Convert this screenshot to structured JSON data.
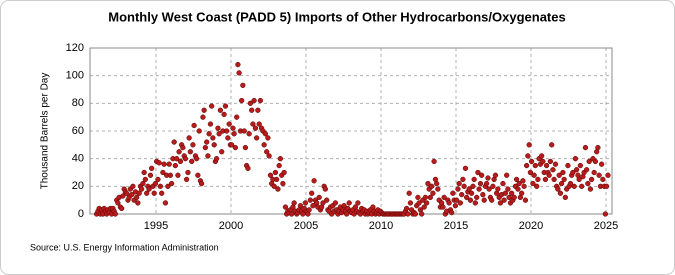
{
  "chart_data": {
    "type": "scatter",
    "title": "Monthly West Coast (PADD 5) Imports of Other Hydrocarbons/Oxygenates",
    "y_label": "Thousand Barrels per Day",
    "source": "Source: U.S. Energy Information Administration",
    "xlim": [
      1990.6,
      2025.4
    ],
    "xticks": [
      1995,
      2000,
      2005,
      2010,
      2015,
      2020,
      2025
    ],
    "ylim": [
      0,
      120
    ],
    "yticks": [
      0,
      20,
      40,
      60,
      80,
      100,
      120
    ],
    "grid": true,
    "series": [
      {
        "color": "#b71c1c",
        "x": [
          1991.04,
          1991.13,
          1991.21,
          1991.29,
          1991.38,
          1991.46,
          1991.54,
          1991.63,
          1991.71,
          1991.79,
          1991.88,
          1991.96,
          1992.04,
          1992.13,
          1992.21,
          1992.29,
          1992.38,
          1992.46,
          1992.54,
          1992.63,
          1992.71,
          1992.79,
          1992.88,
          1992.96,
          1993.04,
          1993.13,
          1993.21,
          1993.29,
          1993.38,
          1993.46,
          1993.54,
          1993.63,
          1993.71,
          1993.79,
          1993.88,
          1993.96,
          1994.04,
          1994.13,
          1994.21,
          1994.29,
          1994.38,
          1994.46,
          1994.54,
          1994.63,
          1994.71,
          1994.79,
          1994.88,
          1994.96,
          1995.04,
          1995.13,
          1995.21,
          1995.29,
          1995.38,
          1995.46,
          1995.54,
          1995.63,
          1995.71,
          1995.79,
          1995.88,
          1995.96,
          1996.04,
          1996.13,
          1996.21,
          1996.29,
          1996.38,
          1996.46,
          1996.54,
          1996.63,
          1996.71,
          1996.79,
          1996.88,
          1996.96,
          1997.04,
          1997.13,
          1997.21,
          1997.29,
          1997.38,
          1997.46,
          1997.54,
          1997.63,
          1997.71,
          1997.79,
          1997.88,
          1997.96,
          1998.04,
          1998.13,
          1998.21,
          1998.29,
          1998.38,
          1998.46,
          1998.54,
          1998.63,
          1998.71,
          1998.79,
          1998.88,
          1998.96,
          1999.04,
          1999.13,
          1999.21,
          1999.29,
          1999.38,
          1999.46,
          1999.54,
          1999.63,
          1999.71,
          1999.79,
          1999.88,
          1999.96,
          2000.04,
          2000.13,
          2000.21,
          2000.29,
          2000.38,
          2000.46,
          2000.54,
          2000.63,
          2000.71,
          2000.79,
          2000.88,
          2000.96,
          2001.04,
          2001.13,
          2001.21,
          2001.29,
          2001.38,
          2001.46,
          2001.54,
          2001.63,
          2001.71,
          2001.79,
          2001.88,
          2001.96,
          2002.04,
          2002.13,
          2002.21,
          2002.29,
          2002.38,
          2002.46,
          2002.54,
          2002.63,
          2002.71,
          2002.79,
          2002.88,
          2002.96,
          2003.04,
          2003.13,
          2003.21,
          2003.29,
          2003.38,
          2003.46,
          2003.54,
          2003.63,
          2003.71,
          2003.79,
          2003.88,
          2003.96,
          2004.04,
          2004.13,
          2004.21,
          2004.29,
          2004.38,
          2004.46,
          2004.54,
          2004.63,
          2004.71,
          2004.79,
          2004.88,
          2004.96,
          2005.04,
          2005.13,
          2005.21,
          2005.29,
          2005.38,
          2005.46,
          2005.54,
          2005.63,
          2005.71,
          2005.79,
          2005.88,
          2005.96,
          2006.04,
          2006.13,
          2006.21,
          2006.29,
          2006.38,
          2006.46,
          2006.54,
          2006.63,
          2006.71,
          2006.79,
          2006.88,
          2006.96,
          2007.04,
          2007.13,
          2007.21,
          2007.29,
          2007.38,
          2007.46,
          2007.54,
          2007.63,
          2007.71,
          2007.79,
          2007.88,
          2007.96,
          2008.04,
          2008.13,
          2008.21,
          2008.29,
          2008.38,
          2008.46,
          2008.54,
          2008.63,
          2008.71,
          2008.79,
          2008.88,
          2008.96,
          2009.04,
          2009.13,
          2009.21,
          2009.29,
          2009.38,
          2009.46,
          2009.54,
          2009.63,
          2009.71,
          2009.79,
          2009.88,
          2009.96,
          2010.04,
          2010.13,
          2010.21,
          2010.29,
          2010.38,
          2010.46,
          2010.54,
          2010.63,
          2010.71,
          2010.79,
          2010.88,
          2010.96,
          2011.04,
          2011.13,
          2011.21,
          2011.29,
          2011.38,
          2011.46,
          2011.54,
          2011.63,
          2011.71,
          2011.79,
          2011.88,
          2011.96,
          2012.04,
          2012.13,
          2012.21,
          2012.29,
          2012.38,
          2012.46,
          2012.54,
          2012.63,
          2012.71,
          2012.79,
          2012.88,
          2012.96,
          2013.04,
          2013.13,
          2013.21,
          2013.29,
          2013.38,
          2013.46,
          2013.54,
          2013.63,
          2013.71,
          2013.79,
          2013.88,
          2013.96,
          2014.04,
          2014.13,
          2014.21,
          2014.29,
          2014.38,
          2014.46,
          2014.54,
          2014.63,
          2014.71,
          2014.79,
          2014.88,
          2014.96,
          2015.04,
          2015.13,
          2015.21,
          2015.29,
          2015.38,
          2015.46,
          2015.54,
          2015.63,
          2015.71,
          2015.79,
          2015.88,
          2015.96,
          2016.04,
          2016.13,
          2016.21,
          2016.29,
          2016.38,
          2016.46,
          2016.54,
          2016.63,
          2016.71,
          2016.79,
          2016.88,
          2016.96,
          2017.04,
          2017.13,
          2017.21,
          2017.29,
          2017.38,
          2017.46,
          2017.54,
          2017.63,
          2017.71,
          2017.79,
          2017.88,
          2017.96,
          2018.04,
          2018.13,
          2018.21,
          2018.29,
          2018.38,
          2018.46,
          2018.54,
          2018.63,
          2018.71,
          2018.79,
          2018.88,
          2018.96,
          2019.04,
          2019.13,
          2019.21,
          2019.29,
          2019.38,
          2019.46,
          2019.54,
          2019.63,
          2019.71,
          2019.79,
          2019.88,
          2019.96,
          2020.04,
          2020.13,
          2020.21,
          2020.29,
          2020.38,
          2020.46,
          2020.54,
          2020.63,
          2020.71,
          2020.79,
          2020.88,
          2020.96,
          2021.04,
          2021.13,
          2021.21,
          2021.29,
          2021.38,
          2021.46,
          2021.54,
          2021.63,
          2021.71,
          2021.79,
          2021.88,
          2021.96,
          2022.04,
          2022.13,
          2022.21,
          2022.29,
          2022.38,
          2022.46,
          2022.54,
          2022.63,
          2022.71,
          2022.79,
          2022.88,
          2022.96,
          2023.04,
          2023.13,
          2023.21,
          2023.29,
          2023.38,
          2023.46,
          2023.54,
          2023.63,
          2023.71,
          2023.79,
          2023.88,
          2023.96,
          2024.04,
          2024.13,
          2024.21,
          2024.29,
          2024.38,
          2024.46,
          2024.54,
          2024.63,
          2024.71,
          2024.79,
          2024.88,
          2024.96,
          2025.04,
          2025.13
        ],
        "values": [
          0,
          2,
          4,
          0,
          3,
          0,
          4,
          2,
          0,
          3,
          1,
          4,
          0,
          4,
          2,
          0,
          10,
          8,
          12,
          5,
          4,
          13,
          18,
          16,
          15,
          10,
          12,
          18,
          14,
          20,
          10,
          16,
          12,
          8,
          15,
          20,
          18,
          22,
          30,
          25,
          15,
          20,
          18,
          28,
          33,
          20,
          15,
          22,
          38,
          25,
          37,
          20,
          15,
          30,
          36,
          8,
          28,
          20,
          36,
          28,
          22,
          40,
          52,
          35,
          40,
          28,
          45,
          38,
          50,
          48,
          42,
          40,
          25,
          30,
          55,
          45,
          38,
          50,
          64,
          42,
          40,
          28,
          60,
          24,
          22,
          70,
          75,
          48,
          52,
          42,
          58,
          65,
          78,
          55,
          50,
          38,
          40,
          62,
          58,
          75,
          45,
          60,
          72,
          78,
          60,
          55,
          65,
          50,
          50,
          62,
          58,
          48,
          70,
          108,
          102,
          60,
          82,
          93,
          60,
          48,
          35,
          33,
          58,
          80,
          75,
          65,
          82,
          62,
          55,
          75,
          65,
          82,
          62,
          60,
          50,
          58,
          45,
          55,
          42,
          28,
          22,
          25,
          20,
          30,
          25,
          18,
          35,
          40,
          28,
          22,
          30,
          5,
          0,
          2,
          1,
          3,
          0,
          5,
          8,
          2,
          0,
          1,
          3,
          6,
          2,
          0,
          4,
          8,
          2,
          0,
          3,
          10,
          15,
          6,
          24,
          10,
          8,
          5,
          12,
          3,
          5,
          8,
          20,
          18,
          10,
          3,
          2,
          5,
          0,
          6,
          2,
          8,
          3,
          0,
          2,
          5,
          1,
          3,
          6,
          2,
          0,
          4,
          8,
          2,
          1,
          3,
          0,
          5,
          2,
          8,
          1,
          0,
          4,
          2,
          3,
          0,
          2,
          0,
          1,
          3,
          0,
          5,
          2,
          0,
          1,
          3,
          0,
          2,
          1,
          0,
          0,
          0,
          0,
          0,
          0,
          0,
          0,
          0,
          0,
          0,
          0,
          0,
          0,
          0,
          0,
          0,
          0,
          2,
          4,
          0,
          15,
          8,
          3,
          0,
          1,
          0,
          6,
          12,
          8,
          3,
          0,
          10,
          5,
          12,
          8,
          22,
          18,
          12,
          20,
          15,
          38,
          25,
          22,
          18,
          10,
          5,
          8,
          5,
          12,
          0,
          2,
          10,
          8,
          3,
          1,
          15,
          10,
          6,
          10,
          18,
          22,
          8,
          14,
          25,
          20,
          33,
          12,
          16,
          18,
          10,
          15,
          20,
          25,
          8,
          12,
          30,
          18,
          22,
          28,
          14,
          10,
          20,
          22,
          26,
          18,
          12,
          10,
          20,
          25,
          28,
          15,
          18,
          12,
          8,
          14,
          22,
          10,
          15,
          28,
          18,
          12,
          8,
          15,
          10,
          12,
          20,
          25,
          18,
          22,
          12,
          15,
          24,
          20,
          10,
          35,
          42,
          50,
          30,
          38,
          22,
          28,
          35,
          20,
          25,
          40,
          36,
          42,
          38,
          30,
          25,
          35,
          30,
          28,
          38,
          50,
          32,
          25,
          36,
          20,
          18,
          28,
          15,
          22,
          30,
          25,
          12,
          18,
          35,
          20,
          22,
          28,
          30,
          20,
          40,
          32,
          28,
          25,
          35,
          20,
          27,
          30,
          48,
          32,
          22,
          38,
          18,
          25,
          40,
          30,
          38,
          45,
          48,
          28,
          20,
          36,
          25,
          20,
          0,
          20,
          28
        ]
      }
    ]
  }
}
